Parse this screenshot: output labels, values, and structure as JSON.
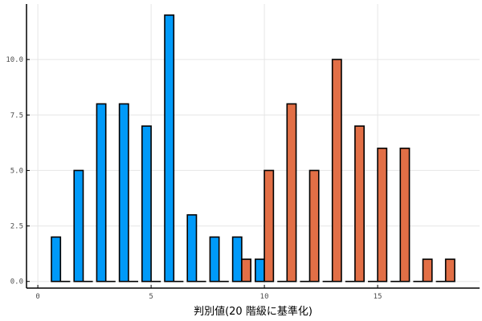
{
  "chart_data": {
    "type": "bar",
    "title": "",
    "xlabel": "判別値(20 階級に基準化)",
    "ylabel": "",
    "xlim": [
      -0.5,
      19.5
    ],
    "ylim": [
      -0.3,
      12.5
    ],
    "xticks": [
      0,
      5,
      10,
      15
    ],
    "xtick_labels": [
      "0",
      "5",
      "10",
      "15"
    ],
    "yticks": [
      0,
      2.5,
      5,
      7.5,
      10
    ],
    "ytick_labels": [
      "0.0",
      "2.5",
      "5.0",
      "7.5",
      "10.0"
    ],
    "grid": true,
    "legend": "none",
    "bar_width": 0.4,
    "series": [
      {
        "color": "#009af9",
        "x": [
          0.8,
          1.8,
          2.8,
          3.8,
          4.8,
          5.8,
          6.8,
          7.8,
          8.8,
          9.8,
          10.8,
          11.8,
          12.8,
          13.8,
          14.8,
          15.8,
          16.8,
          17.8
        ],
        "values": [
          2,
          5,
          8,
          8,
          7,
          12,
          3,
          2,
          2,
          1,
          0,
          0,
          0,
          0,
          0,
          0,
          0,
          0
        ]
      },
      {
        "color": "#e26f46",
        "x": [
          1.2,
          2.2,
          3.2,
          4.2,
          5.2,
          6.2,
          7.2,
          8.2,
          9.2,
          10.2,
          11.2,
          12.2,
          13.2,
          14.2,
          15.2,
          16.2,
          17.2,
          18.2
        ],
        "values": [
          0,
          0,
          0,
          0,
          0,
          0,
          0,
          0,
          1,
          5,
          8,
          5,
          10,
          7,
          6,
          6,
          1,
          1
        ]
      }
    ]
  }
}
